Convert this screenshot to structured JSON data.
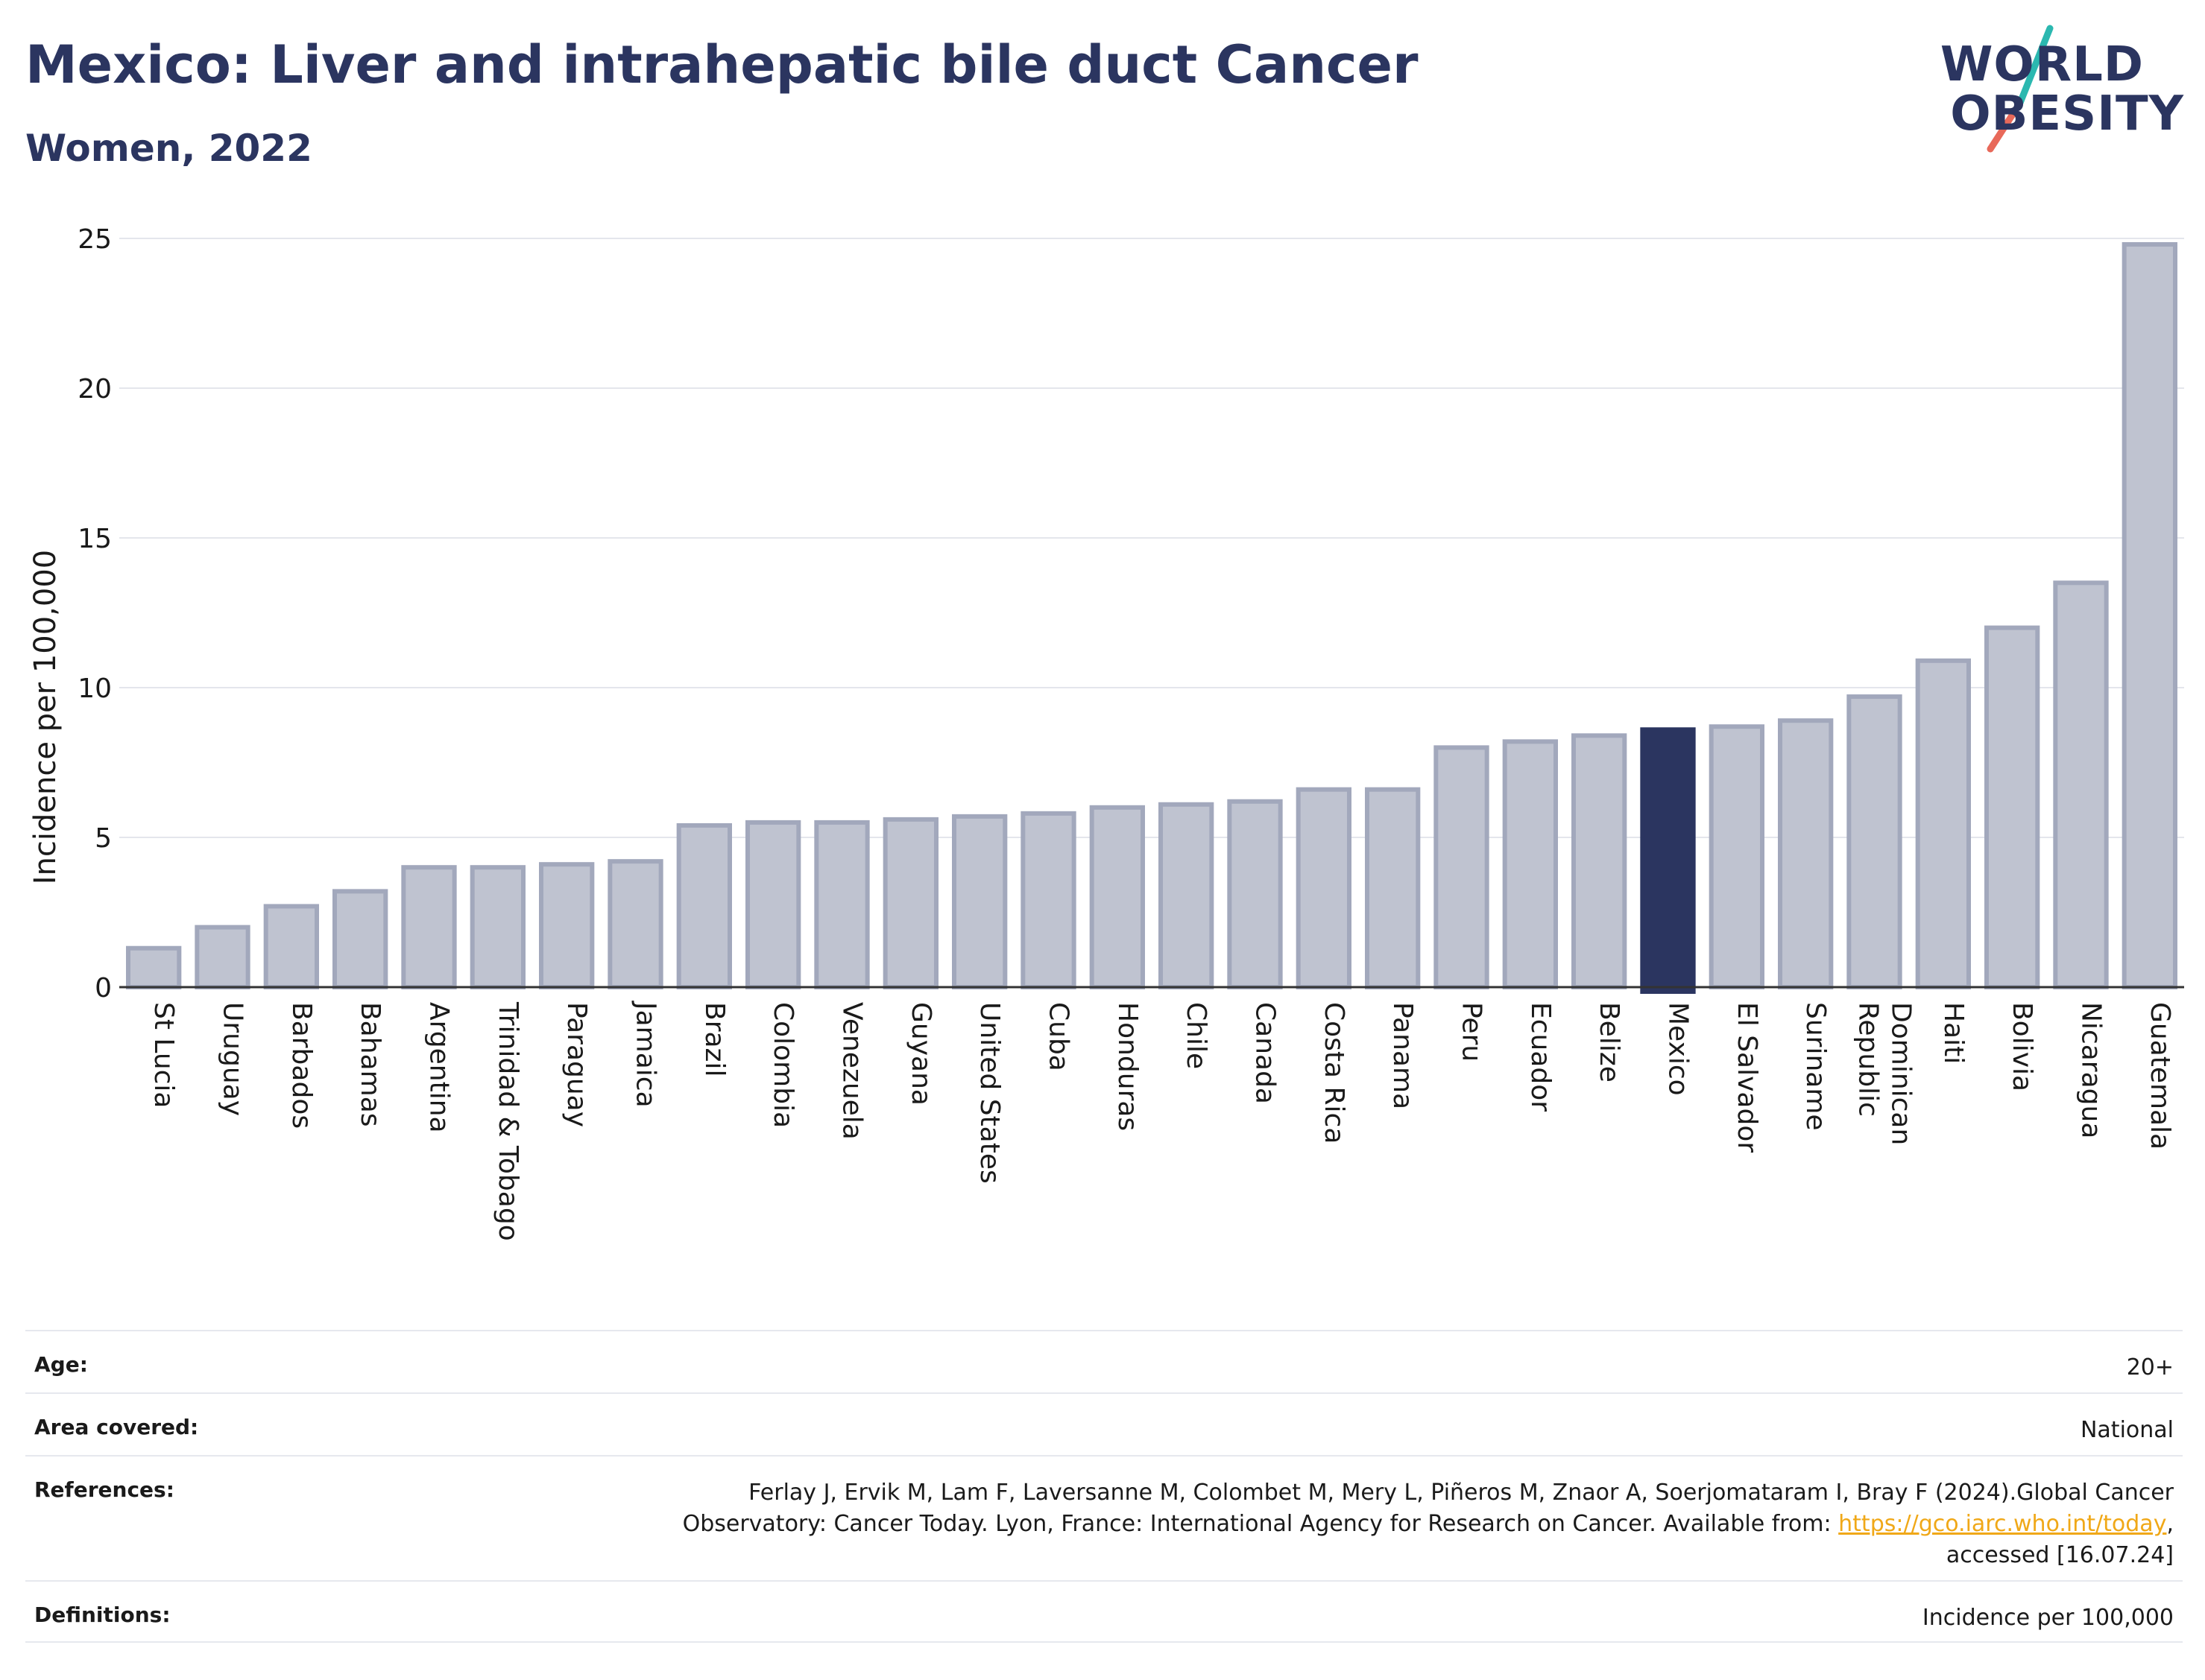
{
  "header": {
    "title": "Mexico: Liver and intrahepatic bile duct Cancer",
    "subtitle": "Women, 2022"
  },
  "logo": {
    "line1": "WORLD",
    "line2": "OBESITY",
    "colors": {
      "text": "#2b3560",
      "slash_teal": "#2bb8b0",
      "slash_coral": "#e8695a"
    }
  },
  "chart_data": {
    "type": "bar",
    "title": "Mexico: Liver and intrahepatic bile duct Cancer",
    "subtitle": "Women, 2022",
    "ylabel": "Incidence per 100,000",
    "xlabel": "",
    "ylim": [
      0,
      25
    ],
    "yticks": [
      0,
      5,
      10,
      15,
      20,
      25
    ],
    "grid": true,
    "highlight": "Mexico",
    "colors": {
      "bar": "#bfc3d0",
      "bar_edge": "#a2a8bc",
      "highlight": "#2b3560"
    },
    "categories": [
      "St Lucia",
      "Uruguay",
      "Barbados",
      "Bahamas",
      "Argentina",
      "Trinidad & Tobago",
      "Paraguay",
      "Jamaica",
      "Brazil",
      "Colombia",
      "Venezuela",
      "Guyana",
      "United States",
      "Cuba",
      "Honduras",
      "Chile",
      "Canada",
      "Costa Rica",
      "Panama",
      "Peru",
      "Ecuador",
      "Belize",
      "Mexico",
      "El Salvador",
      "Suriname",
      "Dominican Republic",
      "Haiti",
      "Bolivia",
      "Nicaragua",
      "Guatemala"
    ],
    "values": [
      1.3,
      2.0,
      2.7,
      3.2,
      4.0,
      4.0,
      4.1,
      4.2,
      5.4,
      5.5,
      5.5,
      5.6,
      5.7,
      5.8,
      6.0,
      6.1,
      6.2,
      6.6,
      6.6,
      8.0,
      8.2,
      8.4,
      8.6,
      8.7,
      8.9,
      9.7,
      10.9,
      12.0,
      13.5,
      24.8
    ]
  },
  "meta": {
    "age_label": "Age:",
    "age_value": "20+",
    "area_label": "Area covered:",
    "area_value": "National",
    "references_label": "References:",
    "references_line1": "Ferlay J, Ervik M, Lam F, Laversanne M, Colombet M, Mery L, Piñeros M, Znaor A, Soerjomataram I, Bray F (2024).Global Cancer",
    "references_line2": "Observatory: Cancer Today. Lyon, France: International Agency for Research on Cancer. Available from: ",
    "references_link": "https://gco.iarc.who.int/today",
    "references_line2_end": ",",
    "references_line3": "accessed [16.07.24]",
    "definitions_label": "Definitions:",
    "definitions_value": "Incidence per 100,000"
  }
}
